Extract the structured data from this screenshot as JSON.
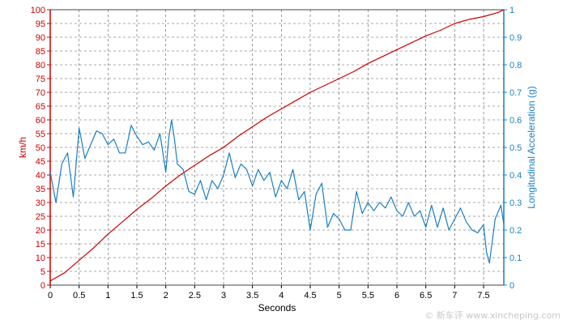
{
  "chart_data": {
    "type": "line",
    "xlabel": "Seconds",
    "x_ticks": [
      "0",
      "0.5",
      "1",
      "1.5",
      "2",
      "2.5",
      "3",
      "3.5",
      "4",
      "4.5",
      "5",
      "5.5",
      "6",
      "6.5",
      "7",
      "7.5"
    ],
    "xlim": [
      0,
      7.85
    ],
    "grid": true,
    "left_axis": {
      "label": "km/h",
      "range": [
        0,
        100
      ],
      "ticks": [
        "0",
        "5",
        "10",
        "15",
        "20",
        "25",
        "30",
        "35",
        "40",
        "45",
        "50",
        "55",
        "60",
        "65",
        "70",
        "75",
        "80",
        "85",
        "90",
        "95",
        "100"
      ],
      "color": "#cc0000"
    },
    "right_axis": {
      "label": "Longitudinal Acceleration (g)",
      "range": [
        0,
        1
      ],
      "ticks": [
        "0",
        "0.1",
        "0.2",
        "0.3",
        "0.4",
        "0.5",
        "0.6",
        "0.7",
        "0.8",
        "0.9",
        "1"
      ],
      "color": "#1a7fc4"
    },
    "series": [
      {
        "axis": "left",
        "color": "#cc0000",
        "x": [
          0,
          0.25,
          0.5,
          0.75,
          1.0,
          1.25,
          1.5,
          1.75,
          2.0,
          2.25,
          2.5,
          2.75,
          3.0,
          3.25,
          3.5,
          3.75,
          4.0,
          4.25,
          4.5,
          4.75,
          5.0,
          5.25,
          5.5,
          5.75,
          6.0,
          6.25,
          6.5,
          6.75,
          7.0,
          7.25,
          7.5,
          7.75,
          7.85
        ],
        "values": [
          1.5,
          4.5,
          9,
          13.5,
          18.5,
          23,
          27.5,
          31.5,
          36,
          40,
          43.5,
          47,
          50,
          54,
          57.5,
          61,
          64,
          67,
          70,
          72.5,
          75,
          77.5,
          80.5,
          83,
          85.5,
          88,
          90.5,
          92.5,
          95,
          96.5,
          97.5,
          99,
          100
        ]
      },
      {
        "axis": "right",
        "color": "#1a7fc4",
        "x": [
          0,
          0.1,
          0.2,
          0.3,
          0.4,
          0.5,
          0.6,
          0.7,
          0.8,
          0.9,
          1.0,
          1.1,
          1.2,
          1.3,
          1.4,
          1.5,
          1.6,
          1.7,
          1.8,
          1.9,
          2.0,
          2.05,
          2.1,
          2.15,
          2.2,
          2.3,
          2.4,
          2.5,
          2.6,
          2.7,
          2.8,
          2.9,
          3.0,
          3.1,
          3.2,
          3.3,
          3.4,
          3.5,
          3.6,
          3.7,
          3.8,
          3.9,
          4.0,
          4.1,
          4.2,
          4.3,
          4.4,
          4.5,
          4.6,
          4.7,
          4.8,
          4.9,
          5.0,
          5.1,
          5.2,
          5.3,
          5.4,
          5.5,
          5.6,
          5.7,
          5.8,
          5.9,
          6.0,
          6.1,
          6.2,
          6.3,
          6.4,
          6.5,
          6.6,
          6.7,
          6.8,
          6.9,
          7.0,
          7.1,
          7.2,
          7.3,
          7.4,
          7.5,
          7.55,
          7.6,
          7.7,
          7.8,
          7.85
        ],
        "values": [
          0.41,
          0.3,
          0.44,
          0.48,
          0.32,
          0.57,
          0.46,
          0.51,
          0.56,
          0.55,
          0.51,
          0.53,
          0.48,
          0.48,
          0.58,
          0.54,
          0.51,
          0.52,
          0.49,
          0.55,
          0.41,
          0.53,
          0.6,
          0.53,
          0.44,
          0.42,
          0.34,
          0.33,
          0.38,
          0.31,
          0.38,
          0.35,
          0.4,
          0.48,
          0.39,
          0.44,
          0.42,
          0.36,
          0.42,
          0.38,
          0.41,
          0.32,
          0.38,
          0.35,
          0.42,
          0.31,
          0.34,
          0.2,
          0.33,
          0.37,
          0.21,
          0.26,
          0.24,
          0.2,
          0.2,
          0.34,
          0.26,
          0.3,
          0.27,
          0.3,
          0.28,
          0.32,
          0.27,
          0.25,
          0.3,
          0.25,
          0.27,
          0.21,
          0.29,
          0.21,
          0.28,
          0.2,
          0.24,
          0.28,
          0.23,
          0.2,
          0.19,
          0.22,
          0.12,
          0.08,
          0.24,
          0.29,
          0.22
        ]
      }
    ]
  },
  "watermark": "© 新车评 www.xincheping.com"
}
